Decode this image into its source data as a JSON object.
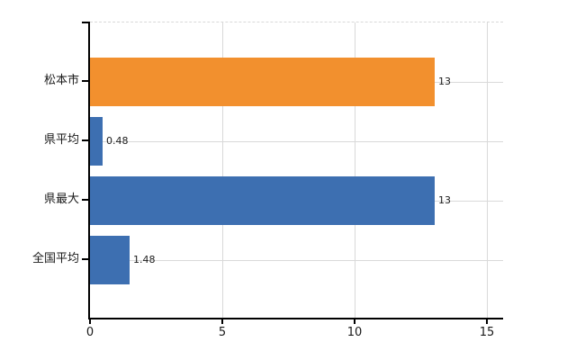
{
  "chart_data": {
    "type": "bar",
    "orientation": "horizontal",
    "title": "",
    "xlabel": "",
    "ylabel": "",
    "categories": [
      "松本市",
      "県平均",
      "県最大",
      "全国平均"
    ],
    "values": [
      13,
      0.48,
      13,
      1.48
    ],
    "data_labels": [
      "13",
      "0.48",
      "13",
      "1.48"
    ],
    "bar_colors": [
      "#F2902E",
      "#3D6FB1",
      "#3D6FB1",
      "#3D6FB1"
    ],
    "xlim": [
      0,
      15.6
    ],
    "xticks": [
      0,
      5,
      10,
      15
    ],
    "xtick_labels": [
      "0",
      "5",
      "10",
      "15"
    ],
    "grid": true,
    "legend": false,
    "colors": {
      "orange_series": "#F2902E",
      "blue_series": "#3D6FB1",
      "grid": "#D9D9D9",
      "axis": "#000000",
      "text": "#1A1A1A",
      "background": "#FFFFFF"
    }
  }
}
